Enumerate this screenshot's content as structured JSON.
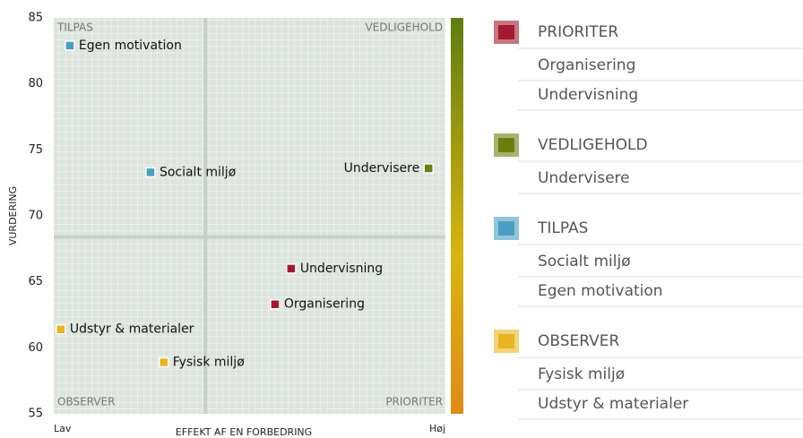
{
  "chart_data": {
    "type": "scatter",
    "x_label": "EFFEKT AF EN FORBEDRING",
    "y_label": "VURDERING",
    "xlim": [
      0,
      100
    ],
    "xticks": [
      {
        "value": 0,
        "label": "Lav"
      },
      {
        "value": 100,
        "label": "Høj"
      }
    ],
    "ylim": [
      55,
      85
    ],
    "yticks": [
      55,
      60,
      65,
      70,
      75,
      80,
      85
    ],
    "x_split": 38.7,
    "y_split": 68.4,
    "quadrants": {
      "top_left": "TILPAS",
      "top_right": "VEDLIGEHOLD",
      "bottom_left": "OBSERVER",
      "bottom_right": "PRIORITER"
    },
    "series": [
      {
        "name": "PRIORITER",
        "color": "#a3192e",
        "labels": [
          "Organisering",
          "Undervisning"
        ],
        "x": [
          56.5,
          60.6
        ],
        "values": [
          63.3,
          66.0
        ]
      },
      {
        "name": "VEDLIGEHOLD",
        "color": "#6b7f10",
        "labels": [
          "Undervisere"
        ],
        "x": [
          95.7
        ],
        "values": [
          73.6
        ]
      },
      {
        "name": "TILPAS",
        "color": "#4a9ec2",
        "labels": [
          "Socialt miljø",
          "Egen motivation"
        ],
        "x": [
          24.7,
          4.1
        ],
        "values": [
          73.3,
          82.9
        ]
      },
      {
        "name": "OBSERVER",
        "color": "#e8b520",
        "labels": [
          "Fysisk miljø",
          "Udstyr & materialer"
        ],
        "x": [
          28.1,
          1.8
        ],
        "values": [
          58.9,
          61.4
        ]
      }
    ]
  }
}
